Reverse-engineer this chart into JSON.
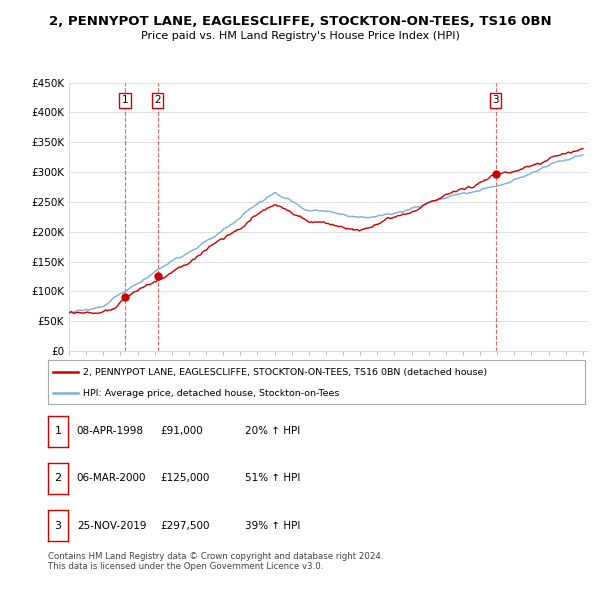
{
  "title": "2, PENNYPOT LANE, EAGLESCLIFFE, STOCKTON-ON-TEES, TS16 0BN",
  "subtitle": "Price paid vs. HM Land Registry's House Price Index (HPI)",
  "ylim": [
    0,
    450000
  ],
  "yticks": [
    0,
    50000,
    100000,
    150000,
    200000,
    250000,
    300000,
    350000,
    400000,
    450000
  ],
  "ytick_labels": [
    "£0",
    "£50K",
    "£100K",
    "£150K",
    "£200K",
    "£250K",
    "£300K",
    "£350K",
    "£400K",
    "£450K"
  ],
  "sale_dates": [
    1998.27,
    2000.17,
    2019.9
  ],
  "sale_prices": [
    91000,
    125000,
    297500
  ],
  "sale_labels": [
    "1",
    "2",
    "3"
  ],
  "legend_red": "2, PENNYPOT LANE, EAGLESCLIFFE, STOCKTON-ON-TEES, TS16 0BN (detached house)",
  "legend_blue": "HPI: Average price, detached house, Stockton-on-Tees",
  "table_data": [
    [
      "1",
      "08-APR-1998",
      "£91,000",
      "20% ↑ HPI"
    ],
    [
      "2",
      "06-MAR-2000",
      "£125,000",
      "51% ↑ HPI"
    ],
    [
      "3",
      "25-NOV-2019",
      "£297,500",
      "39% ↑ HPI"
    ]
  ],
  "footer": "Contains HM Land Registry data © Crown copyright and database right 2024.\nThis data is licensed under the Open Government Licence v3.0.",
  "red_color": "#cc0000",
  "blue_color": "#7bafd4",
  "vline_color": "#cc0000",
  "grid_color": "#e0e0e0"
}
